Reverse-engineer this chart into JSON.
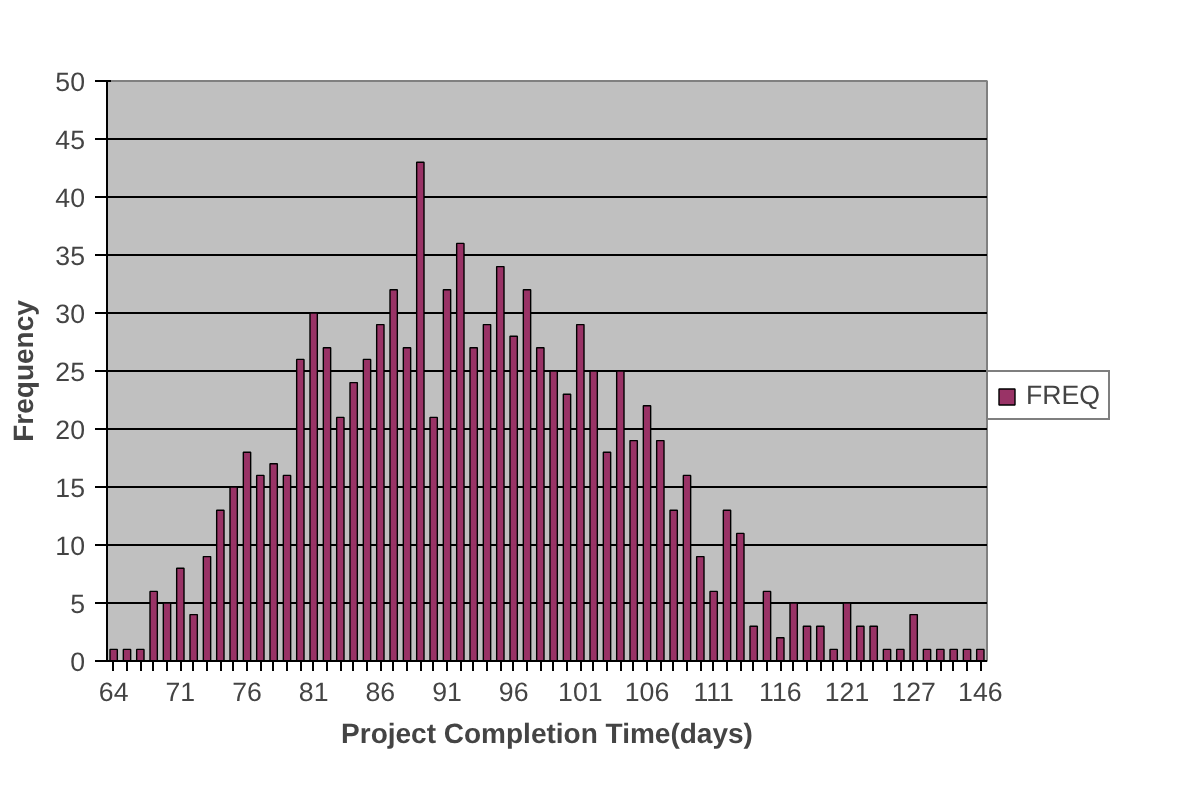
{
  "chart_data": {
    "type": "bar",
    "xlabel": "Project Completion Time(days)",
    "ylabel": "Frequency",
    "categories": [
      "64",
      null,
      null,
      null,
      null,
      "71",
      null,
      null,
      null,
      null,
      "76",
      null,
      null,
      null,
      null,
      "81",
      null,
      null,
      null,
      null,
      "86",
      null,
      null,
      null,
      null,
      "91",
      null,
      null,
      null,
      null,
      "96",
      null,
      null,
      null,
      null,
      "101",
      null,
      null,
      null,
      null,
      "106",
      null,
      null,
      null,
      null,
      "111",
      null,
      null,
      null,
      null,
      "116",
      null,
      null,
      null,
      null,
      "121",
      null,
      null,
      null,
      null,
      "127",
      null,
      null,
      null,
      null,
      "146"
    ],
    "series": [
      {
        "name": "FREQ",
        "color": "#993366",
        "values": [
          1,
          1,
          1,
          6,
          5,
          8,
          4,
          9,
          13,
          15,
          18,
          16,
          17,
          16,
          26,
          30,
          27,
          21,
          24,
          26,
          29,
          32,
          27,
          43,
          21,
          32,
          36,
          27,
          29,
          34,
          28,
          32,
          27,
          25,
          23,
          29,
          25,
          18,
          25,
          19,
          22,
          19,
          13,
          16,
          9,
          6,
          13,
          11,
          3,
          6,
          2,
          5,
          3,
          3,
          1,
          5,
          3,
          3,
          1,
          1,
          4,
          1,
          1,
          1,
          1,
          1
        ]
      }
    ],
    "ylim": [
      0,
      50
    ],
    "yticks": [
      0,
      5,
      10,
      15,
      20,
      25,
      30,
      35,
      40,
      45,
      50
    ],
    "grid": "y",
    "legend": "right"
  }
}
